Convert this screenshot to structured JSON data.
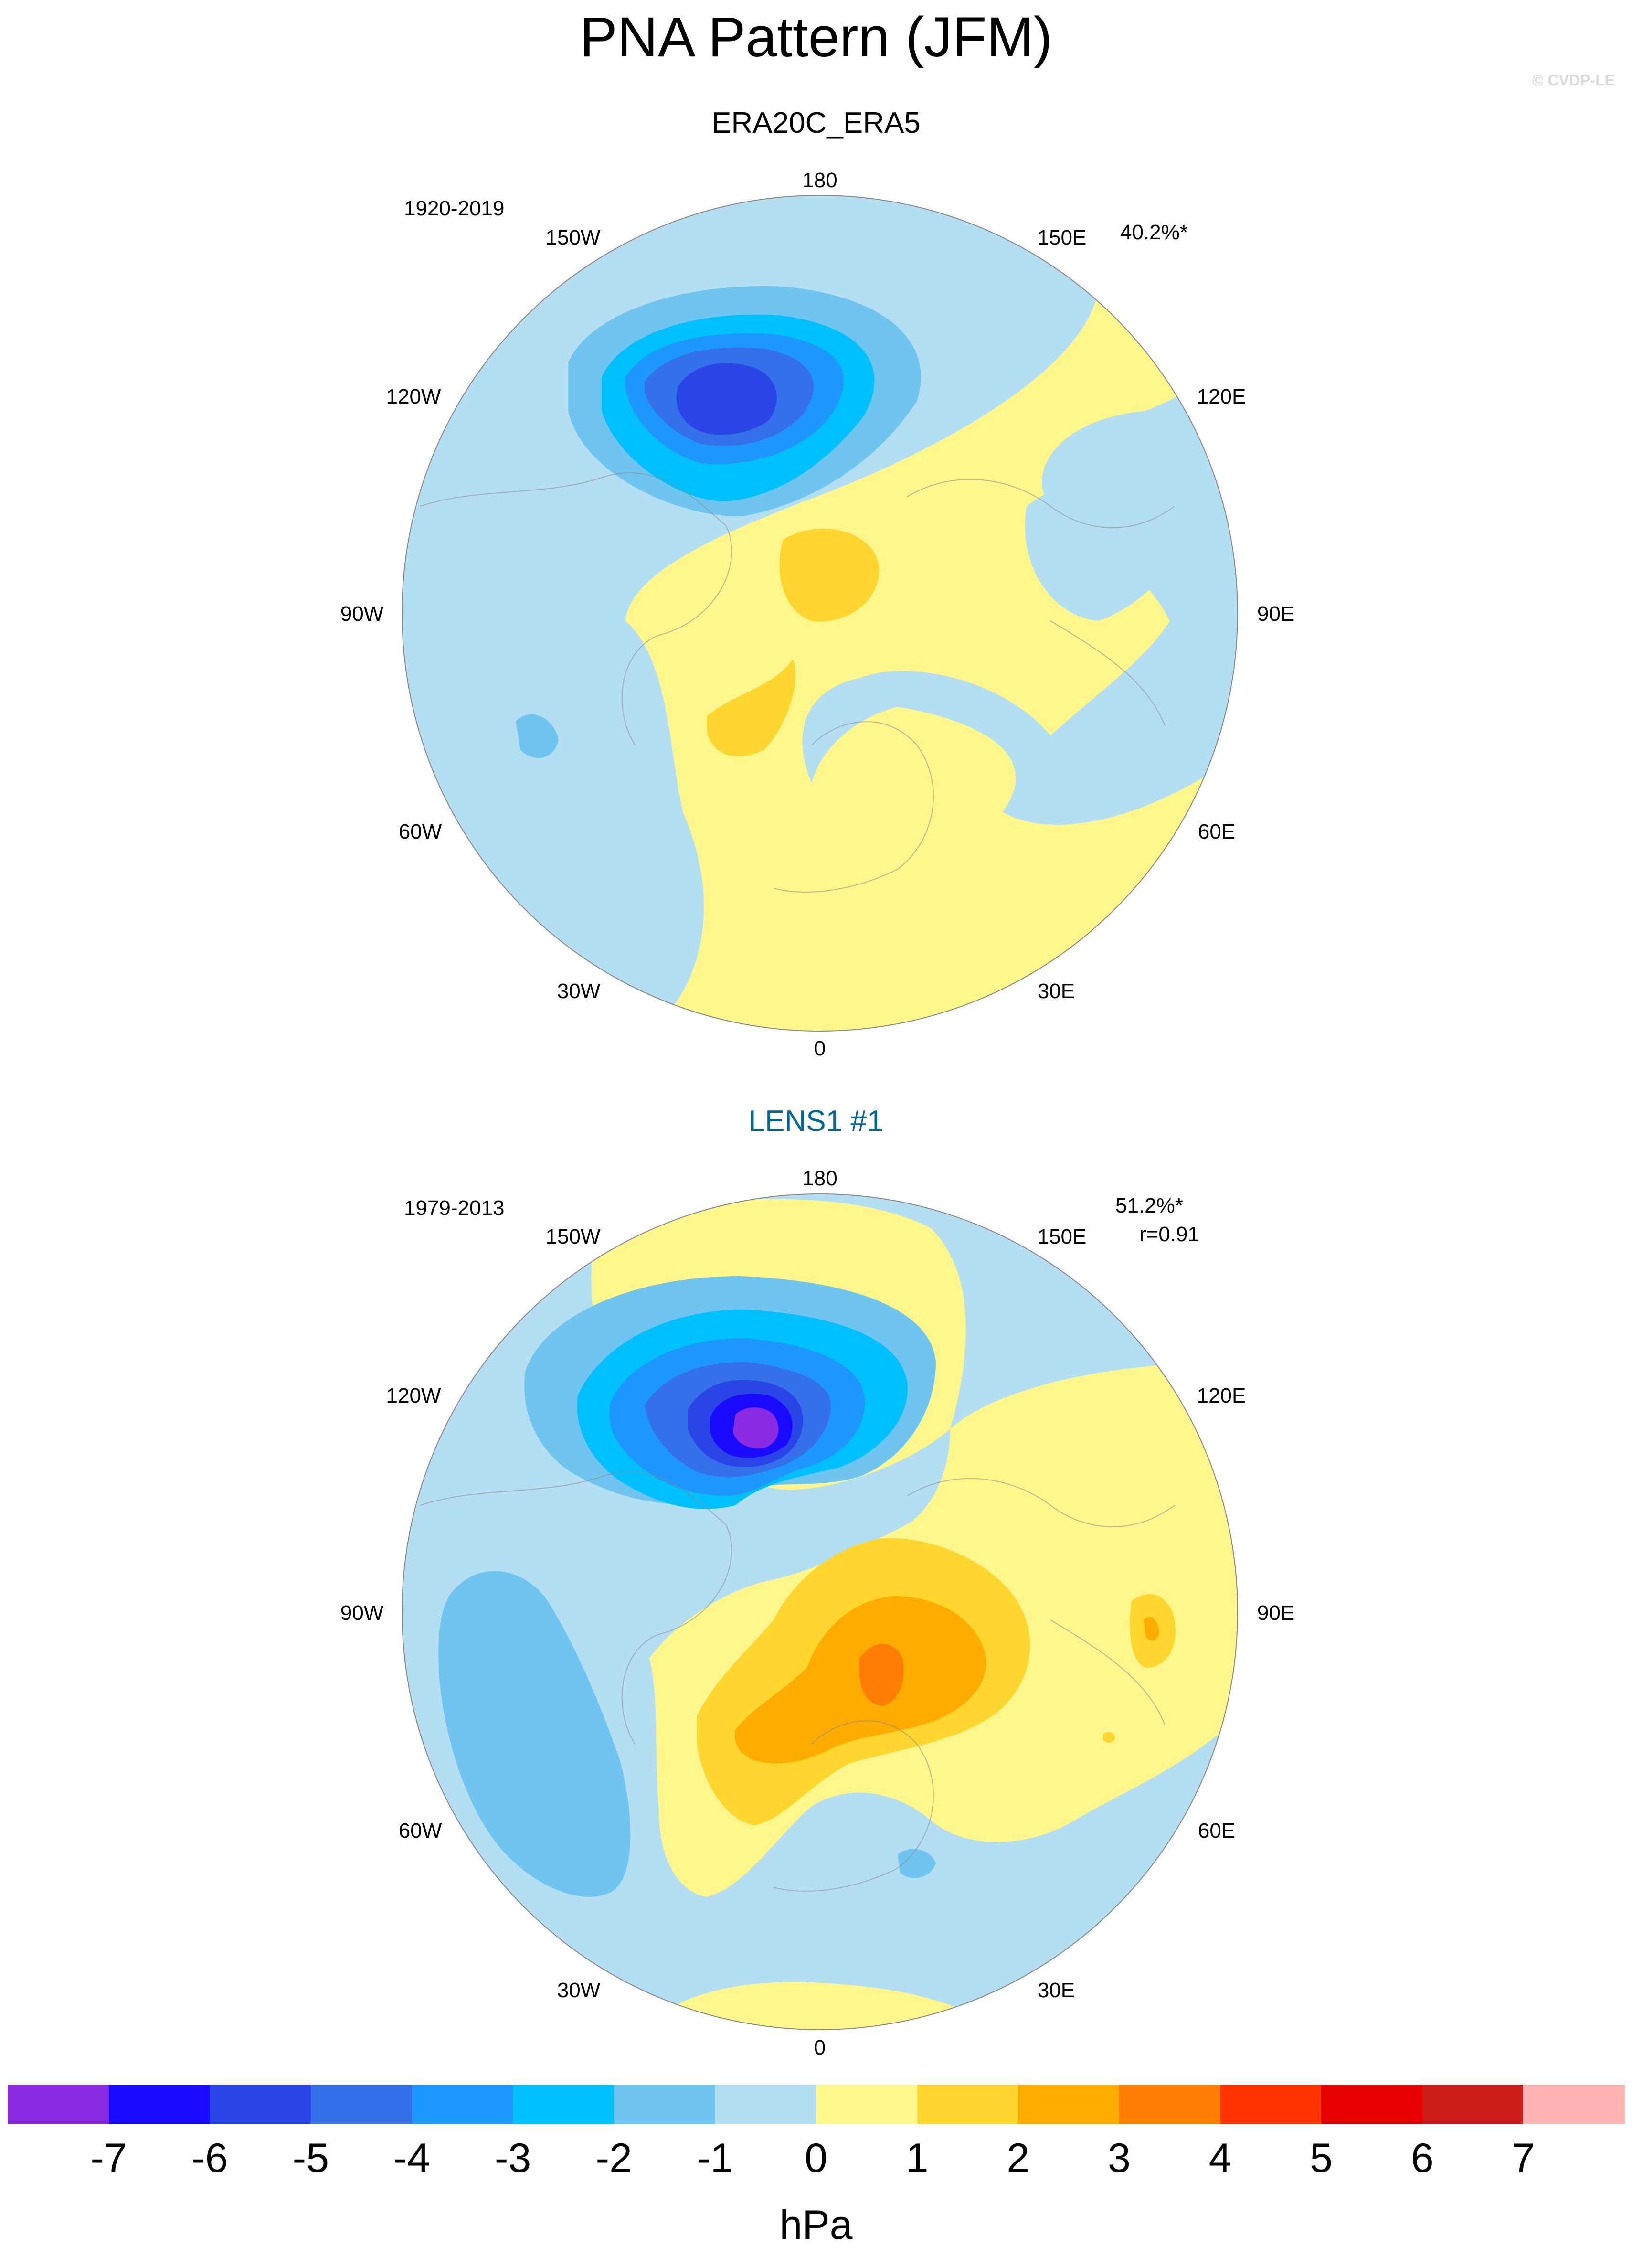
{
  "title": "PNA Pattern (JFM)",
  "credit": "© CVDP-LE",
  "maps": [
    {
      "title": "ERA20C_ERA5",
      "title_color": "#000000",
      "period": "1920-2019",
      "pct": "40.2%*",
      "corr": "",
      "longitude_labels": {
        "n": "180",
        "nnw": "150W",
        "wnw": "120W",
        "w": "90W",
        "wsw": "60W",
        "ssw": "30W",
        "s": "0",
        "sse": "30E",
        "ese": "60E",
        "e": "90E",
        "ene": "120E",
        "nne": "150E"
      }
    },
    {
      "title": "LENS1 #1",
      "title_color": "#006699",
      "period": "1979-2013",
      "pct": "51.2%*",
      "corr": "r=0.91",
      "longitude_labels": {
        "n": "180",
        "nnw": "150W",
        "wnw": "120W",
        "w": "90W",
        "wsw": "60W",
        "ssw": "30W",
        "s": "0",
        "sse": "30E",
        "ese": "60E",
        "e": "90E",
        "ene": "120E",
        "nne": "150E"
      }
    }
  ],
  "colorbar": {
    "unit": "hPa",
    "colors": [
      "#8a2be2",
      "#1a0aff",
      "#2a45e6",
      "#3370ea",
      "#1e96ff",
      "#00c0ff",
      "#70c5f0",
      "#b4dff2",
      "#fff78c",
      "#ffd52e",
      "#ffab00",
      "#ff7d00",
      "#ff3300",
      "#e60000",
      "#cd1c1c",
      "#ffb4b4"
    ],
    "ticks": [
      "-7",
      "-6",
      "-5",
      "-4",
      "-3",
      "-2",
      "-1",
      "0",
      "1",
      "2",
      "3",
      "4",
      "5",
      "6",
      "7"
    ]
  }
}
